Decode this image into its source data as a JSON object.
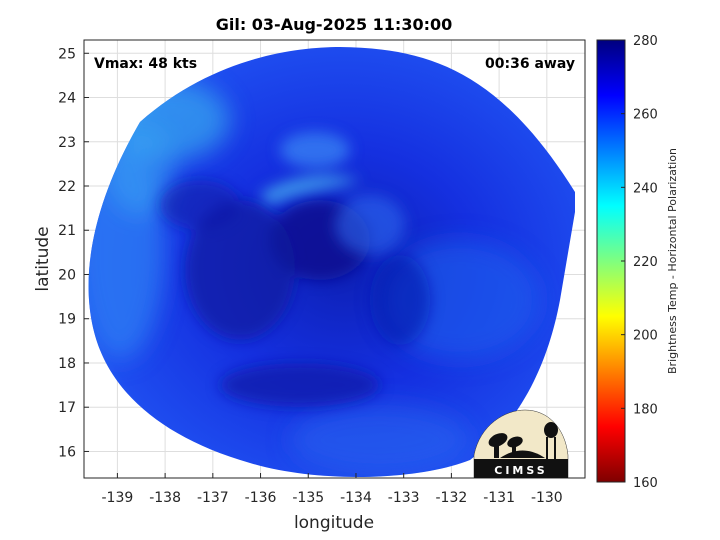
{
  "title": "Gil: 03-Aug-2025 11:30:00",
  "annotations": {
    "vmax": "Vmax: 48 kts",
    "time_away": "00:36 away"
  },
  "axes": {
    "xlabel": "longitude",
    "ylabel": "latitude",
    "xlim": [
      -139.7,
      -129.2
    ],
    "ylim": [
      15.4,
      25.3
    ],
    "xticks": [
      -139,
      -138,
      -137,
      -136,
      -135,
      -134,
      -133,
      -132,
      -131,
      -130
    ],
    "yticks": [
      16,
      17,
      18,
      19,
      20,
      21,
      22,
      23,
      24,
      25
    ],
    "grid": true
  },
  "colorbar": {
    "label": "Brightness Temp - Horizontal Polarization",
    "range": [
      160,
      280
    ],
    "ticks": [
      160,
      180,
      200,
      220,
      240,
      260,
      280
    ],
    "colormap": "jet",
    "colors": [
      "#7f0000",
      "#ff0000",
      "#ffff00",
      "#00ffff",
      "#0000ff",
      "#00007f"
    ]
  },
  "logo": {
    "text": "CIMSS"
  },
  "map": {
    "storm_center_lon": -134.8,
    "storm_center_lat": 20.9,
    "dominant_brightness_temp": 262,
    "colors": {
      "swath_base": "#1530e0",
      "swath_dark": "#0b1aa8",
      "swath_light": "#3a8af5",
      "band_light": "#45a8f0",
      "edge_cyan": "#3ec4f0"
    }
  }
}
